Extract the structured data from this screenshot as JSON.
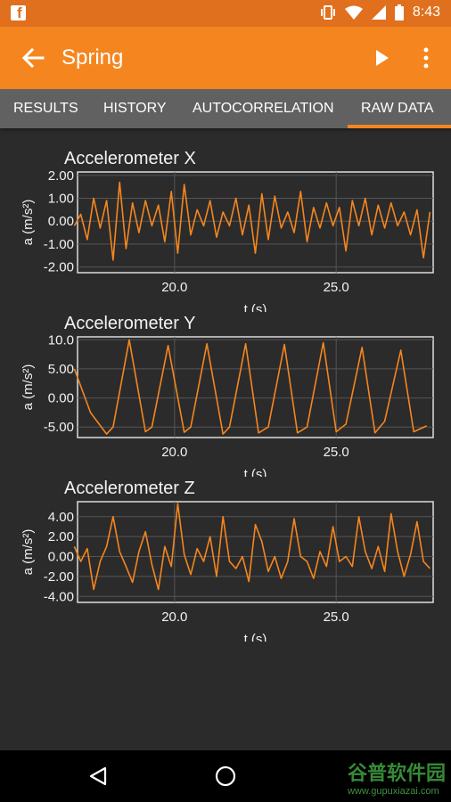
{
  "status": {
    "time": "8:43",
    "notification_icon": "facebook-icon"
  },
  "appbar": {
    "title": "Spring"
  },
  "tabs": [
    {
      "label": "RESULTS"
    },
    {
      "label": "HISTORY"
    },
    {
      "label": "AUTOCORRELATION"
    },
    {
      "label": "RAW DATA",
      "active": true
    }
  ],
  "colors": {
    "accent": "#f5861f",
    "status": "#e0701e",
    "tabbar": "#616161",
    "background": "#2b2b2b",
    "series": "#f5861f"
  },
  "watermark": {
    "text": "谷普软件园",
    "url": "www.gupuxiazai.com"
  },
  "chart_data": [
    {
      "type": "line",
      "title": "Accelerometer X",
      "xlabel": "t (s)",
      "ylabel": "a (m/s²)",
      "xlim": [
        17.0,
        28.0
      ],
      "ylim": [
        -2.25,
        2.15
      ],
      "xticks": [
        20.0,
        25.0
      ],
      "xtick_labels": [
        "20.0",
        "25.0"
      ],
      "yticks": [
        2.0,
        1.0,
        0.0,
        -1.0,
        -2.0
      ],
      "ytick_labels": [
        "2.00",
        "1.00",
        "0.00",
        "-1.00",
        "-2.00"
      ],
      "grid": true,
      "x": [
        16.9,
        17.1,
        17.3,
        17.5,
        17.7,
        17.9,
        18.1,
        18.3,
        18.5,
        18.7,
        18.9,
        19.1,
        19.3,
        19.5,
        19.7,
        19.9,
        20.1,
        20.3,
        20.5,
        20.7,
        20.9,
        21.1,
        21.3,
        21.5,
        21.7,
        21.9,
        22.1,
        22.3,
        22.5,
        22.7,
        22.9,
        23.1,
        23.3,
        23.5,
        23.7,
        23.9,
        24.1,
        24.3,
        24.5,
        24.7,
        24.9,
        25.1,
        25.3,
        25.5,
        25.7,
        25.9,
        26.1,
        26.3,
        26.5,
        26.7,
        26.9,
        27.1,
        27.3,
        27.5,
        27.7,
        27.9
      ],
      "y": [
        -0.2,
        0.3,
        -0.8,
        1.0,
        -0.3,
        0.9,
        -1.7,
        1.7,
        -1.2,
        0.8,
        -0.5,
        0.9,
        -0.2,
        0.7,
        -0.9,
        1.3,
        -1.4,
        1.6,
        -0.6,
        0.5,
        -0.2,
        0.9,
        -0.7,
        0.4,
        -0.2,
        1.0,
        -0.6,
        0.7,
        -1.4,
        1.2,
        -0.8,
        1.1,
        -0.3,
        0.4,
        -0.5,
        1.3,
        -0.9,
        0.6,
        -0.3,
        0.8,
        -0.2,
        0.6,
        -1.3,
        0.9,
        -0.2,
        1.0,
        -0.6,
        0.7,
        -0.3,
        0.8,
        -0.2,
        0.4,
        -0.6,
        0.5,
        -1.6,
        0.4
      ]
    },
    {
      "type": "line",
      "title": "Accelerometer Y",
      "xlabel": "t (s)",
      "ylabel": "a (m/s²)",
      "xlim": [
        17.0,
        28.0
      ],
      "ylim": [
        -6.8,
        10.5
      ],
      "xticks": [
        20.0,
        25.0
      ],
      "xtick_labels": [
        "20.0",
        "25.0"
      ],
      "yticks": [
        10.0,
        5.0,
        0.0,
        -5.0
      ],
      "ytick_labels": [
        "10.0",
        "5.00",
        "0.00",
        "-5.00"
      ],
      "grid": true,
      "x": [
        16.9,
        17.4,
        17.9,
        18.1,
        18.6,
        19.1,
        19.3,
        19.8,
        20.3,
        20.5,
        21.0,
        21.5,
        21.7,
        22.2,
        22.6,
        22.9,
        23.4,
        23.8,
        24.1,
        24.6,
        25.0,
        25.3,
        25.8,
        26.2,
        26.5,
        27.0,
        27.4,
        27.8
      ],
      "y": [
        5.0,
        -2.5,
        -6.2,
        -5.0,
        10.0,
        -5.8,
        -5.0,
        9.0,
        -5.9,
        -5.0,
        9.3,
        -6.2,
        -5.0,
        9.3,
        -6.0,
        -5.0,
        9.2,
        -6.0,
        -5.0,
        9.5,
        -5.8,
        -4.5,
        8.7,
        -6.0,
        -4.0,
        8.2,
        -5.8,
        -4.8
      ]
    },
    {
      "type": "line",
      "title": "Accelerometer Z",
      "xlabel": "t (s)",
      "ylabel": "a (m/s²)",
      "xlim": [
        17.0,
        28.0
      ],
      "ylim": [
        -4.6,
        5.5
      ],
      "xticks": [
        20.0,
        25.0
      ],
      "xtick_labels": [
        "20.0",
        "25.0"
      ],
      "yticks": [
        4.0,
        2.0,
        0.0,
        -2.0,
        -4.0
      ],
      "ytick_labels": [
        "4.00",
        "2.00",
        "0.00",
        "-2.00",
        "-4.00"
      ],
      "grid": true,
      "x": [
        16.9,
        17.1,
        17.3,
        17.5,
        17.7,
        17.9,
        18.1,
        18.3,
        18.5,
        18.7,
        18.9,
        19.1,
        19.3,
        19.5,
        19.7,
        19.9,
        20.1,
        20.3,
        20.5,
        20.7,
        20.9,
        21.1,
        21.3,
        21.5,
        21.7,
        21.9,
        22.1,
        22.3,
        22.5,
        22.7,
        22.9,
        23.1,
        23.3,
        23.5,
        23.7,
        23.9,
        24.1,
        24.3,
        24.5,
        24.7,
        24.9,
        25.1,
        25.3,
        25.5,
        25.7,
        25.9,
        26.1,
        26.3,
        26.5,
        26.7,
        26.9,
        27.1,
        27.3,
        27.5,
        27.7,
        27.9
      ],
      "y": [
        1.0,
        -0.5,
        0.8,
        -3.3,
        -0.5,
        1.0,
        4.0,
        0.5,
        -1.0,
        -2.6,
        0.5,
        2.5,
        -0.8,
        -3.3,
        1.0,
        -1.0,
        5.3,
        0.2,
        -1.8,
        0.8,
        -0.5,
        2.0,
        -2.0,
        4.0,
        -0.5,
        -1.2,
        0.0,
        -2.5,
        3.2,
        1.5,
        -1.5,
        0.0,
        -2.2,
        -0.5,
        3.8,
        0.0,
        -0.5,
        -2.2,
        0.5,
        -1.0,
        3.0,
        -0.5,
        0.0,
        -1.0,
        4.0,
        0.5,
        -1.2,
        1.0,
        -1.5,
        4.3,
        0.5,
        -2.0,
        0.2,
        3.5,
        -0.5,
        -1.2
      ]
    }
  ]
}
